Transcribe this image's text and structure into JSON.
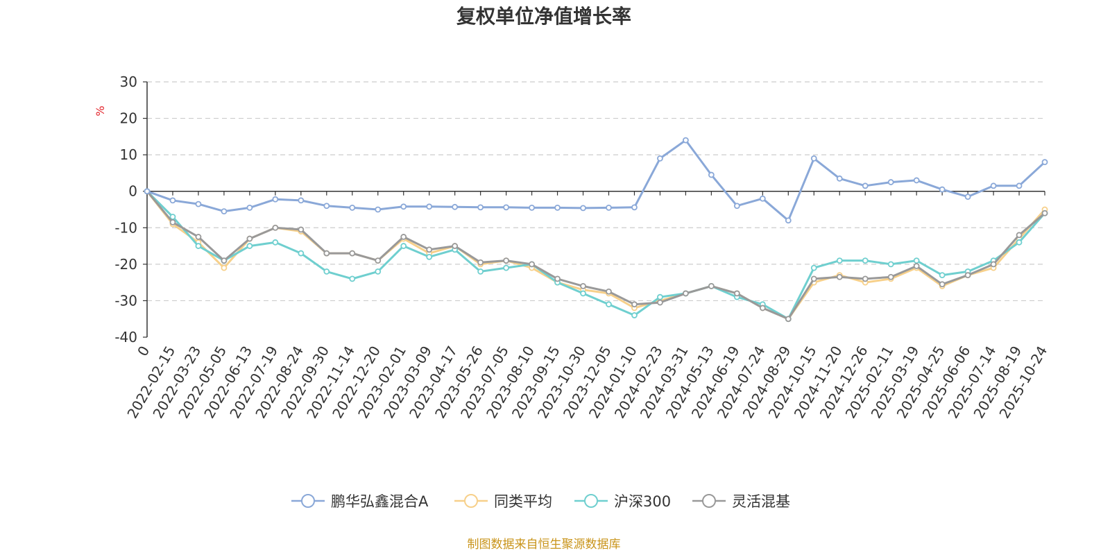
{
  "chart_data": {
    "type": "line",
    "title": "复权单位净值增长率",
    "ylabel": "%",
    "ylim": [
      -40,
      30
    ],
    "yticks": [
      30,
      20,
      10,
      0,
      -10,
      -20,
      -30,
      -40
    ],
    "grid": true,
    "legend_position": "bottom",
    "source": "制图数据来自恒生聚源数据库",
    "categories": [
      "0",
      "2022-02-15",
      "2022-03-23",
      "2022-05-05",
      "2022-06-13",
      "2022-07-19",
      "2022-08-24",
      "2022-09-30",
      "2022-11-14",
      "2022-12-20",
      "2023-02-01",
      "2023-03-09",
      "2023-04-17",
      "2023-05-26",
      "2023-07-05",
      "2023-08-10",
      "2023-09-15",
      "2023-10-30",
      "2023-12-05",
      "2024-01-10",
      "2024-02-23",
      "2024-03-31",
      "2024-05-13",
      "2024-06-19",
      "2024-07-24",
      "2024-08-29",
      "2024-10-15",
      "2024-11-20",
      "2024-12-26",
      "2025-02-11",
      "2025-03-19",
      "2025-04-25",
      "2025-06-06",
      "2025-07-14",
      "2025-08-19",
      "2025-10-24"
    ],
    "series": [
      {
        "name": "鹏华弘鑫混合A",
        "color": "#8aa8d8",
        "values": [
          0,
          -2.5,
          -3.5,
          -5.5,
          -4.5,
          -2.2,
          -2.5,
          -4,
          -4.5,
          -5,
          -4.2,
          -4.2,
          -4.3,
          -4.4,
          -4.4,
          -4.5,
          -4.5,
          -4.6,
          -4.5,
          -4.4,
          9,
          14,
          4.5,
          -4,
          -2,
          -8,
          9,
          3.5,
          1.5,
          2.5,
          3,
          0.5,
          -1.5,
          1.5,
          1.5,
          8
        ]
      },
      {
        "name": "同类平均",
        "color": "#f7d08a",
        "values": [
          0,
          -9,
          -14,
          -21,
          -13,
          -10,
          -11,
          -17,
          -17,
          -19,
          -13,
          -17,
          -15,
          -20,
          -19,
          -21,
          -25,
          -27,
          -28,
          -32,
          -30,
          -28,
          -26,
          -28,
          -32,
          -35,
          -25,
          -23,
          -25,
          -24,
          -21,
          -26,
          -23,
          -21,
          -13,
          -5
        ]
      },
      {
        "name": "沪深300",
        "color": "#6fcfcf",
        "values": [
          0,
          -7,
          -15,
          -19,
          -15,
          -14,
          -17,
          -22,
          -24,
          -22,
          -15,
          -18,
          -16,
          -22,
          -21,
          -20,
          -25,
          -28,
          -31,
          -34,
          -29,
          -28,
          -26,
          -29,
          -31,
          -35,
          -21,
          -19,
          -19,
          -20,
          -19,
          -23,
          -22,
          -19,
          -14,
          -6
        ]
      },
      {
        "name": "灵活混基",
        "color": "#999999",
        "values": [
          0,
          -8.5,
          -12.5,
          -19,
          -13,
          -10,
          -10.5,
          -17,
          -17,
          -19,
          -12.5,
          -16,
          -15,
          -19.5,
          -19,
          -20,
          -24,
          -26,
          -27.5,
          -31,
          -30.5,
          -28,
          -26,
          -28,
          -32,
          -35,
          -24,
          -23.5,
          -24,
          -23.5,
          -20.5,
          -25.5,
          -23,
          -20,
          -12,
          -6
        ]
      }
    ]
  }
}
